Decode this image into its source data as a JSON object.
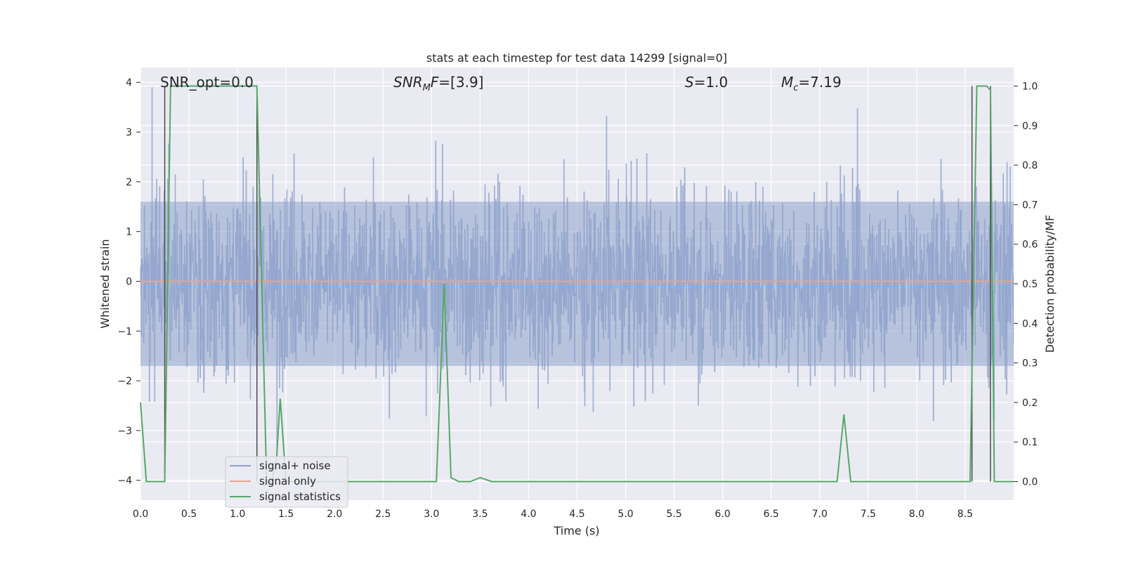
{
  "chart_data": {
    "type": "line",
    "title": "stats at each timestep for test data 14299 [signal=0]",
    "xlabel": "Time (s)",
    "ylabel_left": "Whitened strain",
    "ylabel_right": "Detection probability/MF",
    "xlim": [
      0,
      9.0
    ],
    "ylim_left": [
      -4.4,
      4.3
    ],
    "ylim_right": [
      -0.047,
      1.047
    ],
    "x_ticks": [
      "0.0",
      "0.5",
      "1.0",
      "1.5",
      "2.0",
      "2.5",
      "3.0",
      "3.5",
      "4.0",
      "4.5",
      "5.0",
      "5.5",
      "6.0",
      "6.5",
      "7.0",
      "7.5",
      "8.0",
      "8.5"
    ],
    "y_ticks_left": [
      "−4",
      "−3",
      "−2",
      "−1",
      "0",
      "1",
      "2",
      "3",
      "4"
    ],
    "y_ticks_right": [
      "0.0",
      "0.1",
      "0.2",
      "0.3",
      "0.4",
      "0.5",
      "0.6",
      "0.7",
      "0.8",
      "0.9",
      "1.0"
    ],
    "grid": true,
    "legend_position": "bottom-left",
    "annotations": {
      "snr_opt": "SNR_opt=0.0",
      "snr_mf": "=[3.9]",
      "s": "=1.0",
      "mc": "=7.19"
    },
    "series": [
      {
        "name": "signal+ noise",
        "axis": "left",
        "color": "#8da0cb",
        "description_range": [
          -3.8,
          3.9
        ],
        "typical_band": [
          -1.7,
          1.6
        ]
      },
      {
        "name": "signal only",
        "axis": "left",
        "color": "#e8a68a",
        "x": [
          0,
          9.0
        ],
        "y": [
          0,
          0
        ]
      },
      {
        "name": "signal statistics",
        "axis": "right",
        "color": "#55a868",
        "x": [
          0.0,
          0.06,
          0.25,
          0.31,
          1.2,
          1.3,
          1.35,
          1.4,
          1.44,
          1.5,
          1.55,
          3.05,
          3.13,
          3.2,
          3.28,
          3.4,
          3.5,
          3.62,
          7.18,
          7.25,
          7.32,
          8.55,
          8.62,
          8.72,
          8.76,
          8.8,
          9.0
        ],
        "y": [
          0.2,
          0.0,
          0.0,
          1.0,
          1.0,
          0.0,
          0.0,
          0.05,
          0.21,
          0.0,
          0.0,
          0.0,
          0.5,
          0.01,
          0.0,
          0.0,
          0.01,
          0.0,
          0.0,
          0.17,
          0.0,
          0.0,
          1.0,
          1.0,
          0.99,
          0.0,
          0.0
        ]
      }
    ],
    "vertical_markers_x": [
      0.25,
      1.2,
      8.57,
      8.76
    ]
  },
  "colors": {
    "plot_bg": "#eaeaf2",
    "grid": "#ffffff",
    "noise": "#8da0cb",
    "signal_only": "#e8a68a",
    "statistics": "#55a868",
    "marker": "#4c4c4c"
  }
}
